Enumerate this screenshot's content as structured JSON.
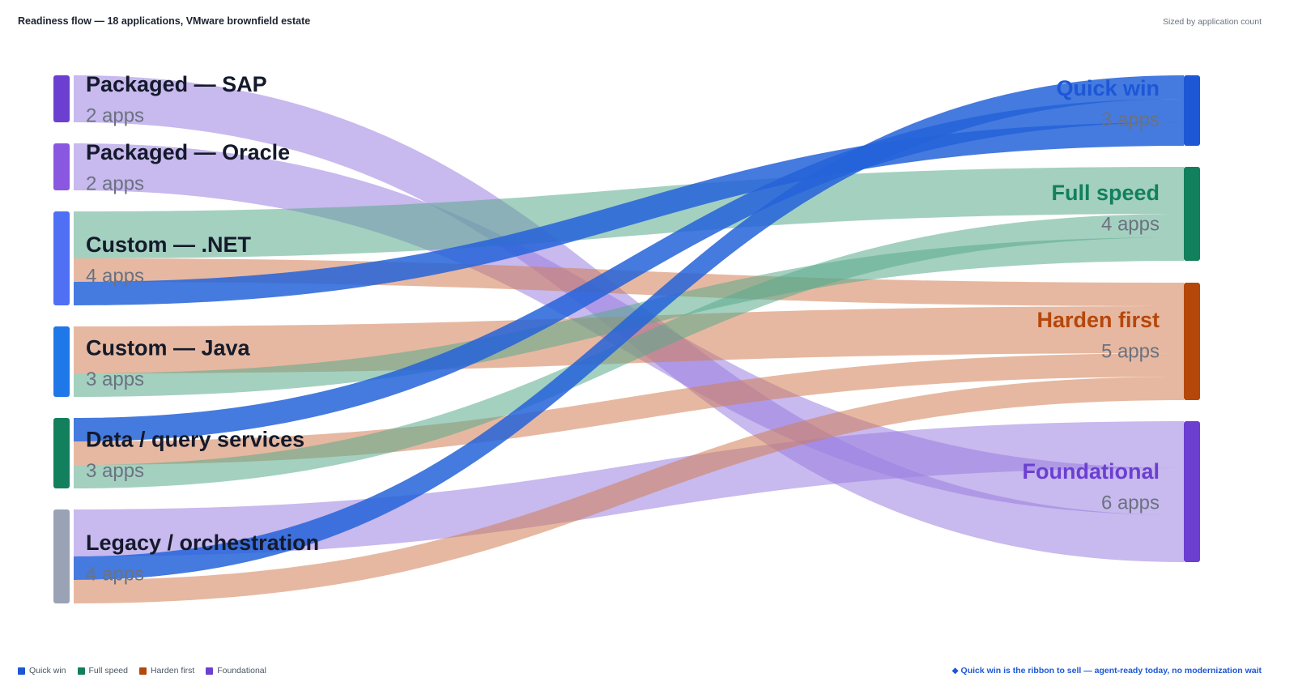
{
  "header": {
    "title": "Readiness flow — 18 applications, VMware brownfield estate",
    "note": "Sized by application count"
  },
  "footer": {
    "note": "◆ Quick win is the ribbon to sell — agent-ready today, no modernization wait"
  },
  "legend": [
    {
      "label": "Quick win",
      "color": "#1d57d6"
    },
    {
      "label": "Full speed",
      "color": "#12805c"
    },
    {
      "label": "Harden first",
      "color": "#b5470b"
    },
    {
      "label": "Foundational",
      "color": "#6c3fd1"
    }
  ],
  "chart_data": {
    "type": "sankey",
    "sources": [
      {
        "name": "Packaged — SAP",
        "count_label": "2 apps",
        "value": 2,
        "color": "#6c3fd1"
      },
      {
        "name": "Packaged — Oracle",
        "count_label": "2 apps",
        "value": 2,
        "color": "#8a57e0"
      },
      {
        "name": "Custom — .NET",
        "count_label": "4 apps",
        "value": 4,
        "color": "#4f6ff5"
      },
      {
        "name": "Custom — Java",
        "count_label": "3 apps",
        "value": 3,
        "color": "#1f78e8"
      },
      {
        "name": "Data / query services",
        "count_label": "3 apps",
        "value": 3,
        "color": "#12805c"
      },
      {
        "name": "Legacy / orchestration",
        "count_label": "4 apps",
        "value": 4,
        "color": "#9aa3b5"
      }
    ],
    "targets": [
      {
        "name": "Quick win",
        "count_label": "3 apps",
        "value": 3,
        "color": "#1d57d6",
        "flow_color": "#2563d9"
      },
      {
        "name": "Full speed",
        "count_label": "4 apps",
        "value": 4,
        "color": "#12805c",
        "flow_color": "#5aa98c"
      },
      {
        "name": "Harden first",
        "count_label": "5 apps",
        "value": 5,
        "color": "#b5470b",
        "flow_color": "#d27e54"
      },
      {
        "name": "Foundational",
        "count_label": "6 apps",
        "value": 6,
        "color": "#6c3fd1",
        "flow_color": "#9b7fe0"
      }
    ],
    "flows": [
      {
        "source": "Packaged — SAP",
        "target": "Foundational",
        "value": 2
      },
      {
        "source": "Packaged — Oracle",
        "target": "Foundational",
        "value": 2
      },
      {
        "source": "Custom — .NET",
        "target": "Full speed",
        "value": 2
      },
      {
        "source": "Custom — .NET",
        "target": "Harden first",
        "value": 1
      },
      {
        "source": "Custom — .NET",
        "target": "Quick win",
        "value": 1
      },
      {
        "source": "Custom — Java",
        "target": "Harden first",
        "value": 2
      },
      {
        "source": "Custom — Java",
        "target": "Full speed",
        "value": 1
      },
      {
        "source": "Data / query services",
        "target": "Quick win",
        "value": 1
      },
      {
        "source": "Data / query services",
        "target": "Harden first",
        "value": 1
      },
      {
        "source": "Data / query services",
        "target": "Full speed",
        "value": 1
      },
      {
        "source": "Legacy / orchestration",
        "target": "Foundational",
        "value": 2
      },
      {
        "source": "Legacy / orchestration",
        "target": "Quick win",
        "value": 1
      },
      {
        "source": "Legacy / orchestration",
        "target": "Harden first",
        "value": 1
      }
    ]
  }
}
